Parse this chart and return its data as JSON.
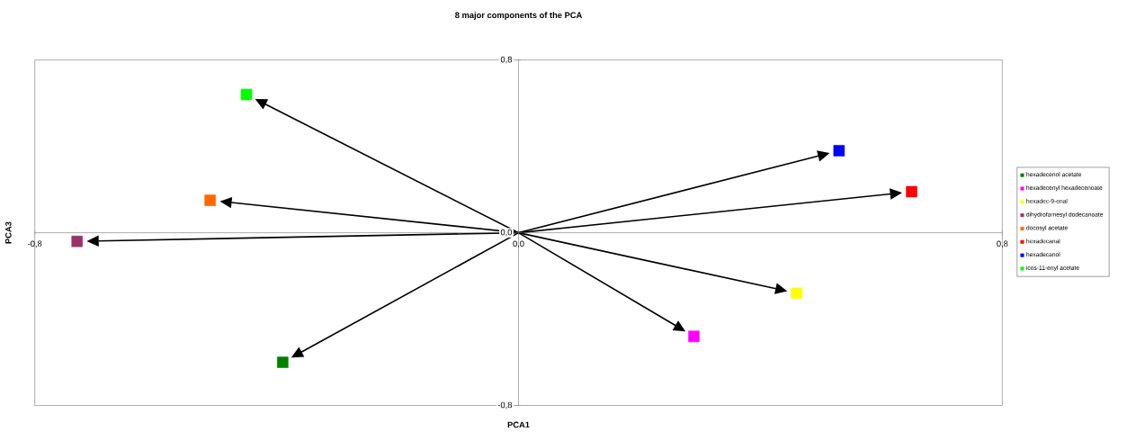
{
  "chart_data": {
    "type": "scatter",
    "title": "8 major components of the PCA",
    "xlabel": "PCA1",
    "ylabel": "PCA3",
    "xlim": [
      -0.8,
      0.8
    ],
    "ylim": [
      -0.8,
      0.8
    ],
    "xticks": [
      {
        "value": -0.8,
        "label": "-0,8"
      },
      {
        "value": 0,
        "label": "0,0"
      },
      {
        "value": 0.8,
        "label": "0,8"
      }
    ],
    "yticks": [
      {
        "value": -0.8,
        "label": "-0,8"
      },
      {
        "value": 0,
        "label": "0,0"
      },
      {
        "value": 0.8,
        "label": "0,8"
      }
    ],
    "marker": "square",
    "legend": "right",
    "series": [
      {
        "name": "hexadecenol acetate",
        "color": "#007f00",
        "x": [
          -0.39
        ],
        "values": [
          -0.6
        ]
      },
      {
        "name": "hexadecenyl hexadecenoate",
        "color": "#ff00ff",
        "x": [
          0.29
        ],
        "values": [
          -0.48
        ]
      },
      {
        "name": "hexadec-9-enal",
        "color": "#ffff00",
        "x": [
          0.46
        ],
        "values": [
          -0.28
        ]
      },
      {
        "name": "dihydrofarnesyl dodecanoate",
        "color": "#993366",
        "x": [
          -0.73
        ],
        "values": [
          -0.04
        ]
      },
      {
        "name": "docosyl acetate",
        "color": "#ff6600",
        "x": [
          -0.51
        ],
        "values": [
          0.15
        ]
      },
      {
        "name": "hexadecanal",
        "color": "#ff0000",
        "x": [
          0.65
        ],
        "values": [
          0.19
        ]
      },
      {
        "name": "hexadecanol",
        "color": "#0000ff",
        "x": [
          0.53
        ],
        "values": [
          0.38
        ]
      },
      {
        "name": "icos-11-enyl acetate",
        "color": "#00ff00",
        "x": [
          -0.45
        ],
        "values": [
          0.64
        ]
      }
    ]
  }
}
